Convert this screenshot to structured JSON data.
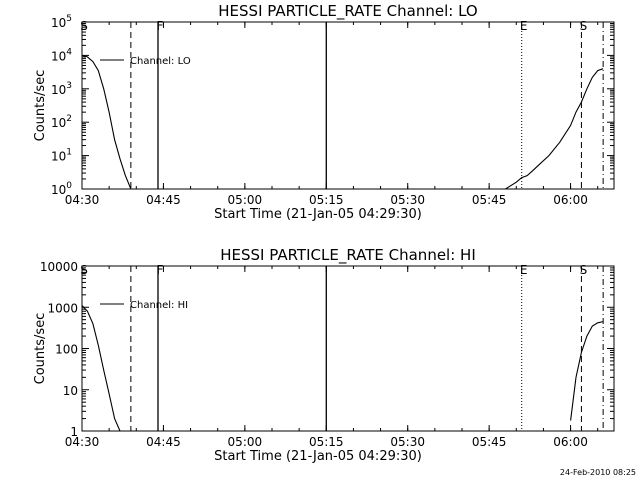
{
  "footer_date": "24-Feb-2010 08:25",
  "chart_data": [
    {
      "type": "line",
      "title": "HESSI PARTICLE_RATE Channel: LO",
      "xlabel": "Start Time (21-Jan-05 04:29:30)",
      "ylabel": "Counts/sec",
      "yscale": "log",
      "ylim": [
        1,
        100000
      ],
      "ytick_labels": [
        {
          "value": 1,
          "mant": "10",
          "exp": "0"
        },
        {
          "value": 10,
          "mant": "10",
          "exp": "1"
        },
        {
          "value": 100,
          "mant": "10",
          "exp": "2"
        },
        {
          "value": 1000,
          "mant": "10",
          "exp": "3"
        },
        {
          "value": 10000,
          "mant": "10",
          "exp": "4"
        },
        {
          "value": 100000,
          "mant": "10",
          "exp": "5"
        }
      ],
      "xlim": [
        "04:30",
        "06:08"
      ],
      "xtick_labels": [
        "04:30",
        "04:45",
        "05:00",
        "05:15",
        "05:30",
        "05:45",
        "06:00"
      ],
      "legend": {
        "label": "Channel: LO",
        "placement": "top-left"
      },
      "markers": [
        {
          "label": "S",
          "time": "04:30",
          "style": "dashed"
        },
        {
          "label": "",
          "time": "04:39",
          "style": "dashed"
        },
        {
          "label": "F",
          "time": "04:44",
          "style": "solid"
        },
        {
          "label": "",
          "time": "05:15",
          "style": "solid"
        },
        {
          "label": "E",
          "time": "05:51",
          "style": "dotted"
        },
        {
          "label": "S",
          "time": "06:02",
          "style": "dashed"
        },
        {
          "label": "",
          "time": "06:06",
          "style": "dashdot"
        }
      ],
      "series": [
        {
          "name": "Channel: LO",
          "segments": [
            [
              [
                "04:30",
                10000
              ],
              [
                "04:31",
                9000
              ],
              [
                "04:32",
                6500
              ],
              [
                "04:33",
                3500
              ],
              [
                "04:34",
                1000
              ],
              [
                "04:35",
                200
              ],
              [
                "04:36",
                30
              ],
              [
                "04:37",
                8
              ],
              [
                "04:38",
                2.5
              ],
              [
                "04:39",
                1
              ]
            ],
            [
              [
                "05:48",
                1
              ],
              [
                "05:50",
                1.6
              ],
              [
                "05:51",
                2.2
              ],
              [
                "05:52",
                2.5
              ],
              [
                "05:53",
                3.5
              ],
              [
                "05:54",
                5
              ],
              [
                "05:56",
                10
              ],
              [
                "05:58",
                25
              ],
              [
                "06:00",
                80
              ],
              [
                "06:01",
                200
              ],
              [
                "06:02",
                400
              ],
              [
                "06:03",
                1000
              ],
              [
                "06:04",
                2200
              ],
              [
                "06:05",
                3500
              ],
              [
                "06:06",
                4000
              ]
            ]
          ]
        }
      ]
    },
    {
      "type": "line",
      "title": "HESSI PARTICLE_RATE Channel: HI",
      "xlabel": "Start Time (21-Jan-05 04:29:30)",
      "ylabel": "Counts/sec",
      "yscale": "log",
      "ylim": [
        1,
        10000
      ],
      "ytick_labels": [
        {
          "value": 1,
          "label": "1"
        },
        {
          "value": 10,
          "label": "10"
        },
        {
          "value": 100,
          "label": "100"
        },
        {
          "value": 1000,
          "label": "1000"
        },
        {
          "value": 10000,
          "label": "10000"
        }
      ],
      "xlim": [
        "04:30",
        "06:08"
      ],
      "xtick_labels": [
        "04:30",
        "04:45",
        "05:00",
        "05:15",
        "05:30",
        "05:45",
        "06:00"
      ],
      "legend": {
        "label": "Channel: HI",
        "placement": "top-left"
      },
      "markers": [
        {
          "label": "S",
          "time": "04:30",
          "style": "dashed"
        },
        {
          "label": "",
          "time": "04:39",
          "style": "dashed"
        },
        {
          "label": "F",
          "time": "04:44",
          "style": "solid"
        },
        {
          "label": "",
          "time": "05:15",
          "style": "solid"
        },
        {
          "label": "E",
          "time": "05:51",
          "style": "dotted"
        },
        {
          "label": "S",
          "time": "06:02",
          "style": "dashed"
        },
        {
          "label": "",
          "time": "06:06",
          "style": "dashdot"
        }
      ],
      "series": [
        {
          "name": "Channel: HI",
          "segments": [
            [
              [
                "04:30",
                1100
              ],
              [
                "04:31",
                800
              ],
              [
                "04:32",
                400
              ],
              [
                "04:33",
                120
              ],
              [
                "04:34",
                30
              ],
              [
                "04:35",
                8
              ],
              [
                "04:36",
                2
              ],
              [
                "04:37",
                1
              ]
            ],
            [
              [
                "06:00",
                1.8
              ],
              [
                "06:01",
                20
              ],
              [
                "06:02",
                80
              ],
              [
                "06:03",
                200
              ],
              [
                "06:04",
                350
              ],
              [
                "06:05",
                420
              ],
              [
                "06:06",
                450
              ]
            ]
          ]
        }
      ]
    }
  ]
}
